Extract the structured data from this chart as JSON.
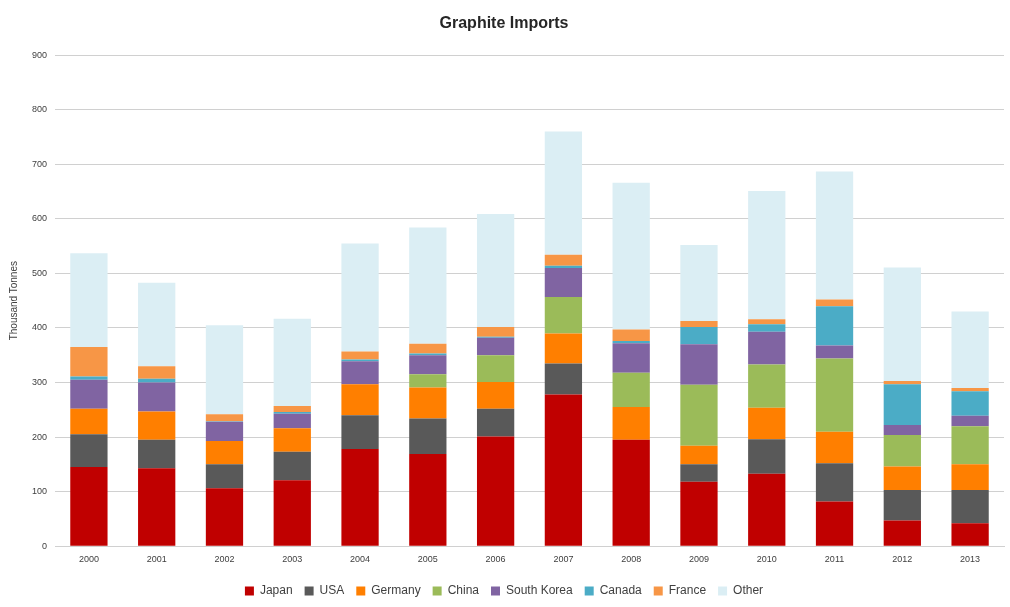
{
  "chart_data": {
    "type": "bar",
    "title": "Graphite Imports",
    "ylabel": "Thousand Tonnes",
    "stacked": true,
    "grid": "y",
    "legend": "bottom",
    "categories": [
      "2000",
      "2001",
      "2002",
      "2003",
      "2004",
      "2005",
      "2006",
      "2007",
      "2008",
      "2009",
      "2010",
      "2011",
      "2012",
      "2013"
    ],
    "ylim": [
      0,
      900
    ],
    "yticks": [
      0,
      100,
      200,
      300,
      400,
      500,
      600,
      700,
      800,
      900
    ],
    "series": [
      {
        "name": "Japan",
        "color": "#c00000",
        "values": [
          145,
          143,
          106,
          121,
          178,
          169,
          201,
          278,
          195,
          118,
          133,
          82,
          47,
          42
        ]
      },
      {
        "name": "USA",
        "color": "#595959",
        "values": [
          60,
          52,
          44,
          52,
          62,
          65,
          51,
          57,
          0,
          32,
          63,
          70,
          56,
          61
        ]
      },
      {
        "name": "Germany",
        "color": "#ff7f00",
        "values": [
          47,
          52,
          43,
          43,
          57,
          57,
          49,
          55,
          60,
          34,
          58,
          58,
          43,
          47
        ]
      },
      {
        "name": "China",
        "color": "#9bbb59",
        "values": [
          0,
          0,
          0,
          0,
          0,
          24,
          49,
          67,
          63,
          112,
          79,
          134,
          58,
          70
        ]
      },
      {
        "name": "South Korea",
        "color": "#8064a2",
        "values": [
          53,
          53,
          35,
          27,
          42,
          35,
          32,
          53,
          54,
          74,
          60,
          24,
          18,
          19
        ]
      },
      {
        "name": "Canada",
        "color": "#4bacc6",
        "values": [
          6,
          7,
          1,
          3,
          3,
          3,
          2,
          4,
          4,
          32,
          14,
          72,
          75,
          45
        ]
      },
      {
        "name": "France",
        "color": "#f79646",
        "values": [
          54,
          23,
          13,
          11,
          15,
          18,
          18,
          20,
          21,
          11,
          9,
          12,
          6,
          6
        ]
      },
      {
        "name": "Other",
        "color": "#dbeef4",
        "values": [
          172,
          153,
          163,
          160,
          198,
          213,
          207,
          226,
          269,
          139,
          235,
          235,
          208,
          140
        ]
      }
    ]
  }
}
